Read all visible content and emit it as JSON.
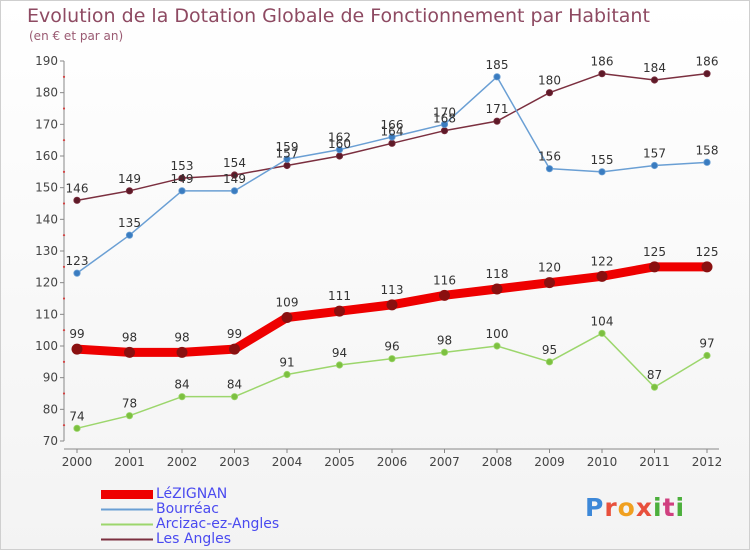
{
  "title": "Evolution de la Dotation Globale de Fonctionnement par Habitant",
  "subtitle": "(en € et par an)",
  "logo": {
    "letters": [
      "P",
      "r",
      "o",
      "x",
      "i",
      "t",
      "i"
    ]
  },
  "colors": {
    "lezignan": "#ee0000",
    "bourreac": "#6a9fd4",
    "arcizac": "#9cd66c",
    "les_angles": "#7b2f3f",
    "marker_lezignan": "#8a1010",
    "marker_bourreac": "#3a7cc0",
    "marker_arcizac": "#7cc040",
    "marker_les_angles": "#5e1a28",
    "title": "#8e4a62",
    "legend_text": "#4a4af0"
  },
  "chart_data": {
    "type": "line",
    "title": "Evolution de la Dotation Globale de Fonctionnement par Habitant",
    "subtitle": "(en € et par an)",
    "xlabel": "",
    "ylabel": "",
    "ylim": [
      70,
      190
    ],
    "yticks": [
      70,
      80,
      90,
      100,
      110,
      120,
      130,
      140,
      150,
      160,
      170,
      180,
      190
    ],
    "grid": false,
    "legend_position": "bottom-left",
    "categories": [
      "2000",
      "2001",
      "2002",
      "2003",
      "2004",
      "2005",
      "2006",
      "2007",
      "2008",
      "2009",
      "2010",
      "2011",
      "2012"
    ],
    "series": [
      {
        "name": "LéZIGNAN",
        "values": [
          99,
          98,
          98,
          99,
          109,
          111,
          113,
          116,
          118,
          120,
          122,
          125,
          125
        ]
      },
      {
        "name": "Bourréac",
        "values": [
          123,
          135,
          149,
          149,
          159,
          162,
          166,
          170,
          185,
          156,
          155,
          157,
          158
        ]
      },
      {
        "name": "Arcizac-ez-Angles",
        "values": [
          74,
          78,
          84,
          84,
          91,
          94,
          96,
          98,
          100,
          95,
          104,
          87,
          97
        ]
      },
      {
        "name": "Les Angles",
        "values": [
          146,
          149,
          153,
          154,
          157,
          160,
          164,
          168,
          171,
          180,
          186,
          184,
          186
        ]
      }
    ]
  }
}
